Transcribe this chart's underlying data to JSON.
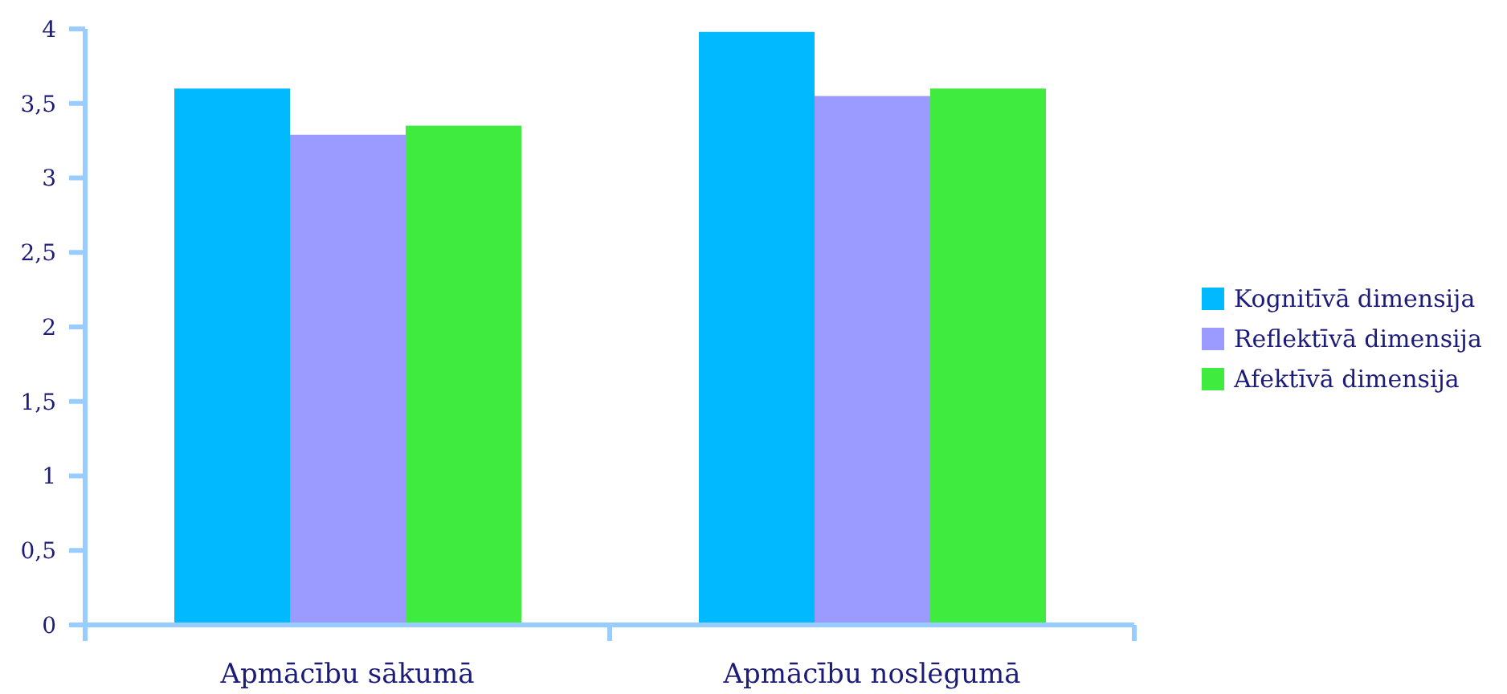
{
  "chart_data": {
    "type": "bar",
    "categories": [
      "Apmācību sākumā",
      "Apmācību noslēgumā"
    ],
    "series": [
      {
        "name": "Kognitīvā dimensija",
        "color": "#00b9ff",
        "values": [
          3.6,
          3.98
        ]
      },
      {
        "name": "Reflektīvā dimensija",
        "color": "#9b9bff",
        "values": [
          3.29,
          3.55
        ]
      },
      {
        "name": "Afektīvā dimensija",
        "color": "#3eeb3e",
        "values": [
          3.35,
          3.6
        ]
      }
    ],
    "ylim": [
      0,
      4
    ],
    "yticks": [
      0,
      {
        "value": 0.5,
        "label": "0,5"
      },
      1,
      {
        "value": 1.5,
        "label": "1,5"
      },
      2,
      {
        "value": 2.5,
        "label": "2,5"
      },
      3,
      {
        "value": 3.5,
        "label": "3,5"
      },
      4
    ],
    "legend": "right"
  }
}
